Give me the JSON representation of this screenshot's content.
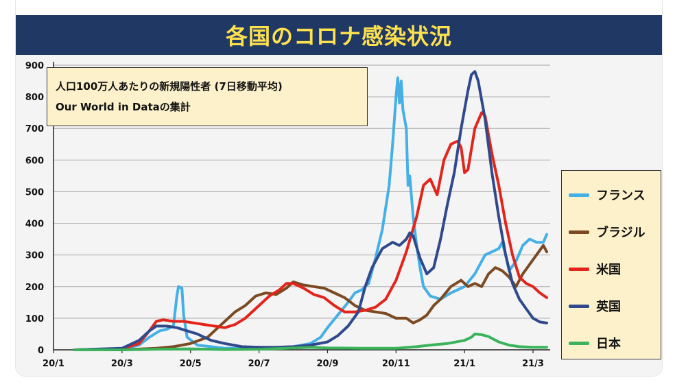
{
  "chart_data": {
    "type": "line",
    "title": "各国のコロナ感染状況",
    "annotation": [
      "人口100万人あたりの新規陽性者 (7日移動平均)",
      "Our World in Dataの集計"
    ],
    "xlabel": "",
    "ylabel": "",
    "ylim": [
      0,
      900
    ],
    "yticks": [
      0,
      100,
      200,
      300,
      400,
      500,
      600,
      700,
      800,
      900
    ],
    "xlim": [
      0,
      14.5
    ],
    "xticks": [
      {
        "x": 0,
        "label": "20/1"
      },
      {
        "x": 2,
        "label": "20/3"
      },
      {
        "x": 4,
        "label": "20/5"
      },
      {
        "x": 6,
        "label": "20/7"
      },
      {
        "x": 8,
        "label": "20/9"
      },
      {
        "x": 10,
        "label": "20/11"
      },
      {
        "x": 12,
        "label": "21/1"
      },
      {
        "x": 14,
        "label": "21/3"
      }
    ],
    "grid": true,
    "legend_position": "right",
    "series": [
      {
        "name": "フランス",
        "color": "#45b0e6",
        "points": [
          [
            0.6,
            0
          ],
          [
            2,
            2
          ],
          [
            2.5,
            15
          ],
          [
            2.8,
            40
          ],
          [
            3.1,
            60
          ],
          [
            3.3,
            65
          ],
          [
            3.5,
            75
          ],
          [
            3.6,
            170
          ],
          [
            3.65,
            200
          ],
          [
            3.75,
            195
          ],
          [
            3.8,
            110
          ],
          [
            3.9,
            40
          ],
          [
            4.2,
            15
          ],
          [
            5,
            5
          ],
          [
            6,
            5
          ],
          [
            7,
            10
          ],
          [
            7.5,
            20
          ],
          [
            7.8,
            40
          ],
          [
            8,
            70
          ],
          [
            8.3,
            110
          ],
          [
            8.6,
            150
          ],
          [
            8.8,
            180
          ],
          [
            9,
            190
          ],
          [
            9.2,
            210
          ],
          [
            9.4,
            290
          ],
          [
            9.6,
            380
          ],
          [
            9.8,
            520
          ],
          [
            9.9,
            650
          ],
          [
            10,
            800
          ],
          [
            10.05,
            860
          ],
          [
            10.1,
            780
          ],
          [
            10.15,
            850
          ],
          [
            10.2,
            760
          ],
          [
            10.3,
            700
          ],
          [
            10.35,
            520
          ],
          [
            10.4,
            550
          ],
          [
            10.5,
            420
          ],
          [
            10.6,
            330
          ],
          [
            10.7,
            260
          ],
          [
            10.8,
            200
          ],
          [
            11,
            170
          ],
          [
            11.3,
            160
          ],
          [
            11.6,
            180
          ],
          [
            12,
            200
          ],
          [
            12.3,
            240
          ],
          [
            12.6,
            300
          ],
          [
            12.8,
            310
          ],
          [
            13,
            320
          ],
          [
            13.1,
            340
          ],
          [
            13.2,
            300
          ],
          [
            13.3,
            250
          ],
          [
            13.5,
            280
          ],
          [
            13.7,
            330
          ],
          [
            13.9,
            350
          ],
          [
            14.1,
            340
          ],
          [
            14.3,
            340
          ],
          [
            14.4,
            365
          ]
        ]
      },
      {
        "name": "ブラジル",
        "color": "#7b4a22",
        "points": [
          [
            0.6,
            0
          ],
          [
            2,
            0
          ],
          [
            3,
            5
          ],
          [
            3.5,
            10
          ],
          [
            4,
            20
          ],
          [
            4.5,
            40
          ],
          [
            4.8,
            70
          ],
          [
            5,
            90
          ],
          [
            5.3,
            120
          ],
          [
            5.6,
            140
          ],
          [
            5.9,
            170
          ],
          [
            6.2,
            180
          ],
          [
            6.5,
            175
          ],
          [
            6.8,
            195
          ],
          [
            7,
            215
          ],
          [
            7.3,
            205
          ],
          [
            7.6,
            200
          ],
          [
            7.9,
            195
          ],
          [
            8.2,
            180
          ],
          [
            8.5,
            165
          ],
          [
            8.8,
            140
          ],
          [
            9.1,
            125
          ],
          [
            9.4,
            120
          ],
          [
            9.7,
            115
          ],
          [
            10,
            100
          ],
          [
            10.3,
            100
          ],
          [
            10.5,
            85
          ],
          [
            10.7,
            95
          ],
          [
            10.9,
            110
          ],
          [
            11.1,
            140
          ],
          [
            11.3,
            160
          ],
          [
            11.6,
            200
          ],
          [
            11.9,
            220
          ],
          [
            12.1,
            200
          ],
          [
            12.3,
            210
          ],
          [
            12.5,
            200
          ],
          [
            12.7,
            240
          ],
          [
            12.9,
            260
          ],
          [
            13.1,
            250
          ],
          [
            13.3,
            230
          ],
          [
            13.5,
            200
          ],
          [
            13.7,
            240
          ],
          [
            13.9,
            270
          ],
          [
            14.1,
            300
          ],
          [
            14.3,
            330
          ],
          [
            14.4,
            310
          ]
        ]
      },
      {
        "name": "米国",
        "color": "#e3241b",
        "points": [
          [
            0.6,
            0
          ],
          [
            2,
            3
          ],
          [
            2.5,
            20
          ],
          [
            2.8,
            60
          ],
          [
            3,
            90
          ],
          [
            3.2,
            95
          ],
          [
            3.5,
            90
          ],
          [
            3.8,
            90
          ],
          [
            4.1,
            85
          ],
          [
            4.4,
            80
          ],
          [
            4.7,
            75
          ],
          [
            5,
            70
          ],
          [
            5.3,
            80
          ],
          [
            5.6,
            100
          ],
          [
            6,
            140
          ],
          [
            6.3,
            170
          ],
          [
            6.6,
            190
          ],
          [
            6.8,
            210
          ],
          [
            7,
            210
          ],
          [
            7.3,
            195
          ],
          [
            7.6,
            175
          ],
          [
            7.9,
            165
          ],
          [
            8.2,
            140
          ],
          [
            8.5,
            120
          ],
          [
            8.8,
            120
          ],
          [
            9.1,
            125
          ],
          [
            9.4,
            135
          ],
          [
            9.7,
            160
          ],
          [
            10,
            220
          ],
          [
            10.3,
            310
          ],
          [
            10.6,
            420
          ],
          [
            10.8,
            520
          ],
          [
            11,
            540
          ],
          [
            11.2,
            490
          ],
          [
            11.4,
            600
          ],
          [
            11.6,
            650
          ],
          [
            11.8,
            660
          ],
          [
            11.9,
            640
          ],
          [
            12,
            560
          ],
          [
            12.1,
            570
          ],
          [
            12.3,
            700
          ],
          [
            12.5,
            750
          ],
          [
            12.6,
            740
          ],
          [
            12.8,
            620
          ],
          [
            13,
            520
          ],
          [
            13.2,
            400
          ],
          [
            13.4,
            300
          ],
          [
            13.6,
            230
          ],
          [
            13.8,
            210
          ],
          [
            14,
            200
          ],
          [
            14.2,
            180
          ],
          [
            14.4,
            165
          ]
        ]
      },
      {
        "name": "英国",
        "color": "#2f4a8c",
        "points": [
          [
            0.6,
            0
          ],
          [
            2,
            5
          ],
          [
            2.5,
            30
          ],
          [
            2.8,
            60
          ],
          [
            3,
            75
          ],
          [
            3.3,
            75
          ],
          [
            3.6,
            70
          ],
          [
            3.9,
            60
          ],
          [
            4.2,
            50
          ],
          [
            4.6,
            30
          ],
          [
            5,
            20
          ],
          [
            5.5,
            10
          ],
          [
            6,
            8
          ],
          [
            6.5,
            8
          ],
          [
            7,
            10
          ],
          [
            7.5,
            15
          ],
          [
            8,
            25
          ],
          [
            8.3,
            45
          ],
          [
            8.6,
            75
          ],
          [
            8.9,
            120
          ],
          [
            9.1,
            200
          ],
          [
            9.3,
            260
          ],
          [
            9.6,
            320
          ],
          [
            9.9,
            340
          ],
          [
            10.1,
            330
          ],
          [
            10.3,
            350
          ],
          [
            10.4,
            370
          ],
          [
            10.5,
            360
          ],
          [
            10.7,
            290
          ],
          [
            10.9,
            240
          ],
          [
            11.1,
            260
          ],
          [
            11.3,
            350
          ],
          [
            11.5,
            460
          ],
          [
            11.7,
            560
          ],
          [
            11.9,
            700
          ],
          [
            12.1,
            820
          ],
          [
            12.2,
            870
          ],
          [
            12.3,
            880
          ],
          [
            12.4,
            850
          ],
          [
            12.6,
            730
          ],
          [
            12.8,
            560
          ],
          [
            13,
            420
          ],
          [
            13.2,
            300
          ],
          [
            13.4,
            210
          ],
          [
            13.6,
            160
          ],
          [
            13.8,
            130
          ],
          [
            14,
            100
          ],
          [
            14.2,
            88
          ],
          [
            14.4,
            85
          ]
        ]
      },
      {
        "name": "日本",
        "color": "#3ab35a",
        "points": [
          [
            0.6,
            0
          ],
          [
            2,
            0
          ],
          [
            3,
            2
          ],
          [
            4,
            3
          ],
          [
            5,
            1
          ],
          [
            6,
            2
          ],
          [
            6.8,
            5
          ],
          [
            7.5,
            8
          ],
          [
            8,
            6
          ],
          [
            9,
            5
          ],
          [
            10,
            5
          ],
          [
            10.6,
            10
          ],
          [
            11,
            15
          ],
          [
            11.5,
            20
          ],
          [
            12,
            30
          ],
          [
            12.2,
            40
          ],
          [
            12.3,
            50
          ],
          [
            12.5,
            48
          ],
          [
            12.7,
            42
          ],
          [
            13,
            25
          ],
          [
            13.3,
            15
          ],
          [
            13.6,
            10
          ],
          [
            14,
            8
          ],
          [
            14.4,
            8
          ]
        ]
      }
    ]
  }
}
